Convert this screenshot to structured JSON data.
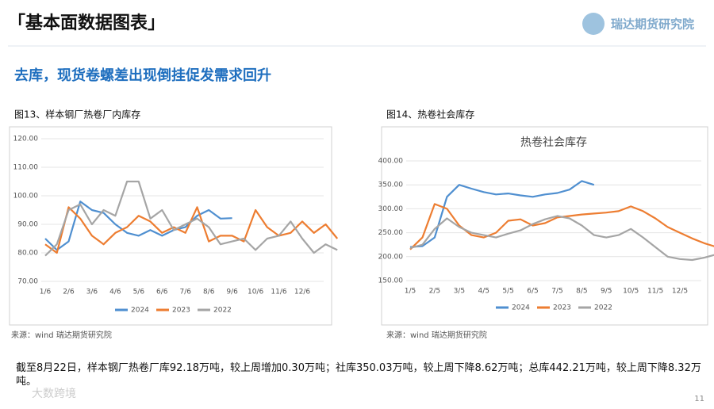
{
  "header": {
    "title": "「基本面数据图表」",
    "logo": "瑞达期货研究院"
  },
  "subtitle": "去库，现货卷螺差出现倒挂促发需求回升",
  "chart_data": [
    {
      "type": "line",
      "caption": "图13、样本钢厂热卷厂内库存",
      "source": "来源：wind   瑞达期货研究院",
      "categories": [
        "1/6",
        null,
        "2/6",
        null,
        "3/6",
        null,
        "4/6",
        null,
        "5/6",
        null,
        "6/6",
        null,
        "7/6",
        null,
        "8/6",
        null,
        "9/6",
        null,
        "10/6",
        null,
        "11/6",
        null,
        "12/6",
        null,
        null,
        null
      ],
      "series": [
        {
          "name": "2024",
          "color": "#4f8fd0",
          "values": [
            85,
            81,
            84,
            98,
            95,
            94,
            90,
            87,
            86,
            88,
            86,
            88,
            89,
            93,
            95,
            92,
            92.18,
            null,
            null,
            null,
            null,
            null,
            null,
            null,
            null,
            null
          ]
        },
        {
          "name": "2023",
          "color": "#ed7d31",
          "values": [
            83,
            80,
            96,
            92,
            86,
            83,
            87,
            89,
            93,
            91,
            87,
            89,
            87,
            96,
            84,
            86,
            86,
            84,
            95,
            89,
            86,
            87,
            91,
            87,
            90,
            85
          ]
        },
        {
          "name": "2022",
          "color": "#a5a5a5",
          "values": [
            79,
            83,
            95,
            97,
            90,
            95,
            93,
            105,
            105,
            92,
            95,
            88,
            90,
            92,
            89,
            83,
            84,
            85,
            81,
            85,
            86,
            91,
            85,
            80,
            83,
            81
          ]
        }
      ],
      "ylim": [
        70,
        120
      ],
      "yticks": [
        {
          "value": 70,
          "label": "70.00"
        },
        {
          "value": 80,
          "label": "80.00"
        },
        {
          "value": 90,
          "label": "90.00"
        },
        {
          "value": 100,
          "label": "100.00"
        },
        {
          "value": 110,
          "label": "110.00"
        },
        {
          "value": 120,
          "label": "120.00"
        }
      ],
      "grid": true
    },
    {
      "type": "line",
      "caption": "图14、热卷社会库存",
      "title": "热卷社会库存",
      "source": "来源：wind   瑞达期货研究院",
      "categories": [
        "1/5",
        null,
        "2/5",
        null,
        "3/5",
        null,
        "4/5",
        null,
        "5/5",
        null,
        "6/5",
        null,
        "7/5",
        null,
        "8/5",
        null,
        "9/5",
        null,
        "10/5",
        null,
        "11/5",
        null,
        "12/5",
        null,
        null,
        null
      ],
      "series": [
        {
          "name": "2024",
          "color": "#4f8fd0",
          "values": [
            220,
            222,
            240,
            325,
            350,
            342,
            335,
            330,
            332,
            328,
            325,
            330,
            333,
            340,
            358,
            350.03,
            null,
            null,
            null,
            null,
            null,
            null,
            null,
            null,
            null,
            null
          ]
        },
        {
          "name": "2023",
          "color": "#ed7d31",
          "values": [
            215,
            240,
            310,
            300,
            265,
            245,
            240,
            250,
            275,
            278,
            265,
            270,
            282,
            285,
            288,
            290,
            292,
            295,
            305,
            295,
            280,
            262,
            250,
            238,
            228,
            220
          ]
        },
        {
          "name": "2022",
          "color": "#a5a5a5",
          "values": [
            218,
            225,
            258,
            280,
            262,
            250,
            245,
            240,
            248,
            255,
            268,
            278,
            285,
            280,
            265,
            245,
            240,
            245,
            258,
            240,
            220,
            200,
            195,
            193,
            198,
            205
          ]
        }
      ],
      "ylim": [
        150,
        400
      ],
      "yticks": [
        {
          "value": 150,
          "label": "150.00"
        },
        {
          "value": 200,
          "label": "200.00"
        },
        {
          "value": 250,
          "label": "250.00"
        },
        {
          "value": 300,
          "label": "300.00"
        },
        {
          "value": 350,
          "label": "350.00"
        },
        {
          "value": 400,
          "label": "400.00"
        }
      ],
      "grid": true
    }
  ],
  "paragraph": "截至8月22日，样本钢厂热卷厂库92.18万吨，较上周增加0.30万吨；社库350.03万吨，较上周下降8.62万吨；总库442.21万吨，较上周下降8.32万吨。",
  "watermark": "大数跨境",
  "page_number": "11"
}
